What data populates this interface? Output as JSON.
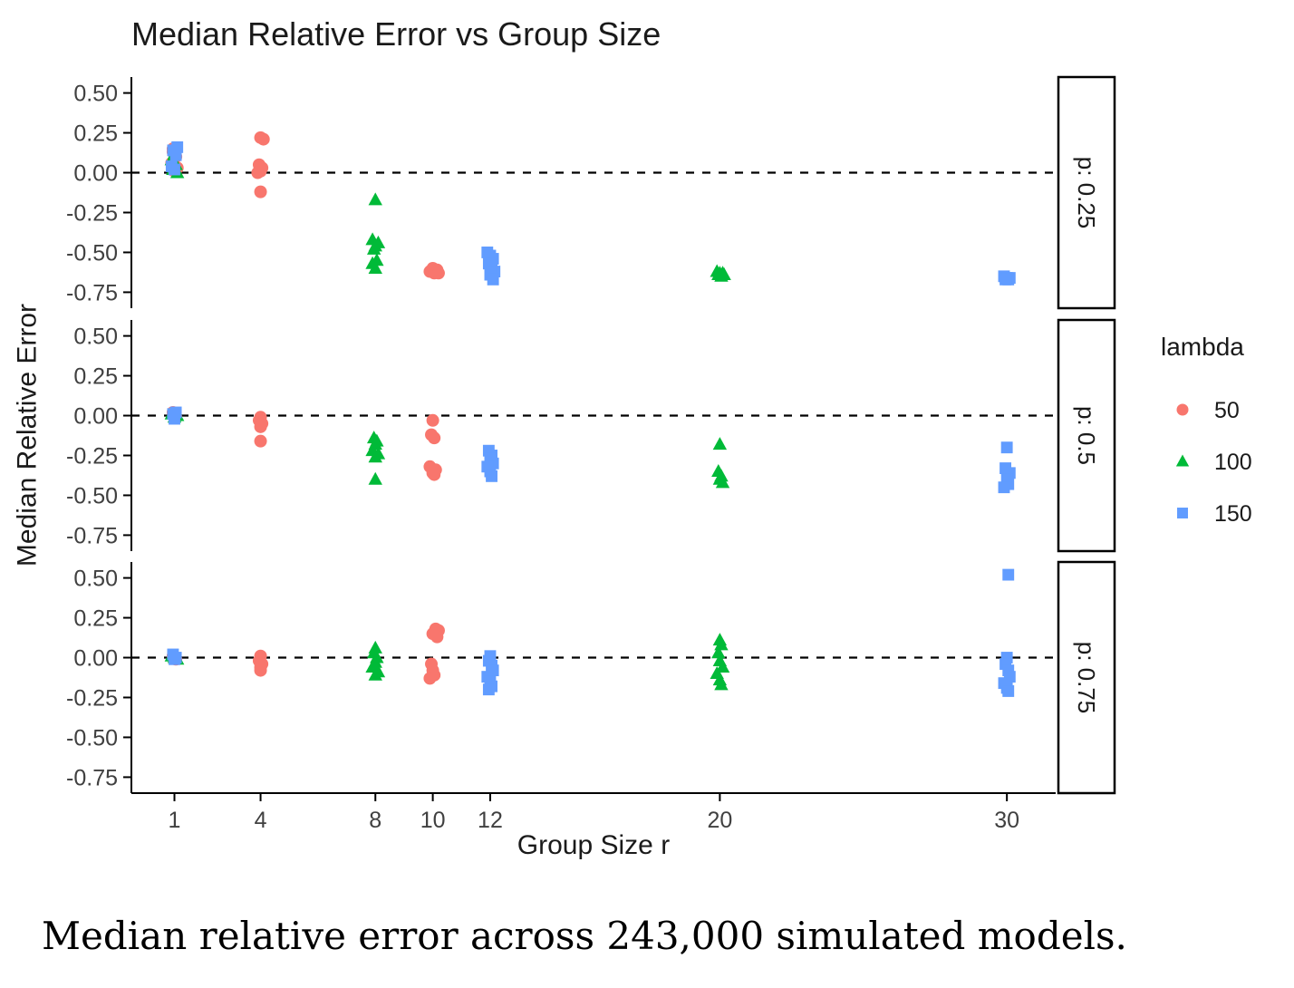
{
  "caption": "Median relative error across 243,000 simulated models.",
  "chart_data": {
    "type": "scatter",
    "title": "Median Relative Error vs Group Size",
    "xlabel": "Group Size r",
    "ylabel": "Median Relative Error",
    "x_ticks": [
      1,
      4,
      8,
      10,
      12,
      20,
      30
    ],
    "y_tick_labels": [
      "0.50",
      "0.25",
      "0.00",
      "-0.25",
      "-0.50",
      "-0.75"
    ],
    "xlim": [
      -0.5,
      31.7
    ],
    "ylim": [
      -0.85,
      0.6
    ],
    "grid": false,
    "reference_line_y": 0,
    "legend": {
      "title": "lambda",
      "position": "right",
      "entries": [
        {
          "label": "50",
          "shape": "circle",
          "color": "#F8766D"
        },
        {
          "label": "100",
          "shape": "triangle",
          "color": "#00BA38"
        },
        {
          "label": "150",
          "shape": "square",
          "color": "#619CFF"
        }
      ]
    },
    "facets": [
      {
        "label": "p: 0.25",
        "series": [
          {
            "name": "50",
            "shape": "circle",
            "color": "#F8766D",
            "points": [
              [
                0.95,
                0.13
              ],
              [
                1.05,
                0.1
              ],
              [
                0.9,
                0.06
              ],
              [
                1.1,
                0.03
              ],
              [
                1.0,
                0.01
              ],
              [
                0.95,
                0.15
              ],
              [
                4.0,
                0.22
              ],
              [
                4.1,
                0.21
              ],
              [
                3.95,
                0.05
              ],
              [
                4.05,
                0.03
              ],
              [
                4.0,
                0.01
              ],
              [
                3.9,
                0.0
              ],
              [
                4.0,
                -0.12
              ],
              [
                10.0,
                -0.6
              ],
              [
                10.15,
                -0.61
              ],
              [
                9.9,
                -0.62
              ],
              [
                10.05,
                -0.63
              ],
              [
                10.2,
                -0.63
              ]
            ]
          },
          {
            "name": "100",
            "shape": "triangle",
            "color": "#00BA38",
            "points": [
              [
                1.0,
                0.12
              ],
              [
                0.9,
                0.08
              ],
              [
                1.05,
                0.05
              ],
              [
                0.95,
                0.02
              ],
              [
                1.1,
                0.0
              ],
              [
                8.0,
                -0.17
              ],
              [
                7.9,
                -0.42
              ],
              [
                8.1,
                -0.44
              ],
              [
                8.0,
                -0.46
              ],
              [
                7.95,
                -0.48
              ],
              [
                8.05,
                -0.55
              ],
              [
                7.9,
                -0.57
              ],
              [
                8.0,
                -0.6
              ],
              [
                19.9,
                -0.62
              ],
              [
                20.0,
                -0.63
              ],
              [
                20.1,
                -0.63
              ],
              [
                19.95,
                -0.64
              ],
              [
                20.05,
                -0.65
              ],
              [
                20.15,
                -0.64
              ]
            ]
          },
          {
            "name": "150",
            "shape": "square",
            "color": "#619CFF",
            "points": [
              [
                1.1,
                0.16
              ],
              [
                0.95,
                0.14
              ],
              [
                1.05,
                0.11
              ],
              [
                0.9,
                0.04
              ],
              [
                1.0,
                0.02
              ],
              [
                11.9,
                -0.5
              ],
              [
                12.0,
                -0.52
              ],
              [
                12.1,
                -0.54
              ],
              [
                11.95,
                -0.57
              ],
              [
                12.05,
                -0.6
              ],
              [
                12.15,
                -0.62
              ],
              [
                12.0,
                -0.64
              ],
              [
                12.1,
                -0.67
              ],
              [
                29.9,
                -0.65
              ],
              [
                30.0,
                -0.66
              ],
              [
                30.1,
                -0.66
              ],
              [
                30.05,
                -0.67
              ],
              [
                29.95,
                -0.67
              ]
            ]
          }
        ]
      },
      {
        "label": "p: 0.5",
        "series": [
          {
            "name": "50",
            "shape": "circle",
            "color": "#F8766D",
            "points": [
              [
                0.95,
                0.02
              ],
              [
                1.0,
                0.0
              ],
              [
                1.05,
                -0.01
              ],
              [
                4.0,
                -0.01
              ],
              [
                3.95,
                -0.03
              ],
              [
                4.05,
                -0.05
              ],
              [
                4.0,
                -0.07
              ],
              [
                4.0,
                -0.16
              ],
              [
                10.0,
                -0.03
              ],
              [
                9.95,
                -0.12
              ],
              [
                10.05,
                -0.14
              ],
              [
                9.9,
                -0.32
              ],
              [
                10.1,
                -0.34
              ],
              [
                10.0,
                -0.36
              ],
              [
                10.05,
                -0.37
              ]
            ]
          },
          {
            "name": "100",
            "shape": "triangle",
            "color": "#00BA38",
            "points": [
              [
                0.9,
                0.01
              ],
              [
                1.0,
                -0.01
              ],
              [
                1.1,
                0.0
              ],
              [
                7.95,
                -0.14
              ],
              [
                8.05,
                -0.16
              ],
              [
                8.0,
                -0.18
              ],
              [
                7.9,
                -0.22
              ],
              [
                8.1,
                -0.24
              ],
              [
                8.0,
                -0.26
              ],
              [
                8.0,
                -0.4
              ],
              [
                20.0,
                -0.18
              ],
              [
                19.95,
                -0.35
              ],
              [
                20.05,
                -0.38
              ],
              [
                20.0,
                -0.4
              ],
              [
                20.1,
                -0.42
              ]
            ]
          },
          {
            "name": "150",
            "shape": "square",
            "color": "#619CFF",
            "points": [
              [
                0.95,
                0.01
              ],
              [
                1.05,
                0.02
              ],
              [
                1.0,
                -0.02
              ],
              [
                11.95,
                -0.22
              ],
              [
                12.05,
                -0.25
              ],
              [
                12.0,
                -0.27
              ],
              [
                12.1,
                -0.3
              ],
              [
                11.9,
                -0.32
              ],
              [
                12.0,
                -0.35
              ],
              [
                12.05,
                -0.38
              ],
              [
                30.0,
                -0.2
              ],
              [
                29.95,
                -0.33
              ],
              [
                30.1,
                -0.36
              ],
              [
                30.0,
                -0.4
              ],
              [
                30.05,
                -0.43
              ],
              [
                29.9,
                -0.45
              ]
            ]
          }
        ]
      },
      {
        "label": "p: 0.75",
        "series": [
          {
            "name": "50",
            "shape": "circle",
            "color": "#F8766D",
            "points": [
              [
                0.95,
                0.01
              ],
              [
                1.0,
                0.0
              ],
              [
                1.05,
                -0.01
              ],
              [
                4.0,
                0.01
              ],
              [
                3.95,
                -0.02
              ],
              [
                4.05,
                -0.04
              ],
              [
                4.0,
                -0.06
              ],
              [
                4.0,
                -0.08
              ],
              [
                10.1,
                0.18
              ],
              [
                10.2,
                0.17
              ],
              [
                10.0,
                0.15
              ],
              [
                10.15,
                0.13
              ],
              [
                9.95,
                -0.04
              ],
              [
                10.0,
                -0.08
              ],
              [
                10.05,
                -0.11
              ],
              [
                9.9,
                -0.13
              ]
            ]
          },
          {
            "name": "100",
            "shape": "triangle",
            "color": "#00BA38",
            "points": [
              [
                0.9,
                0.01
              ],
              [
                1.0,
                0.0
              ],
              [
                1.1,
                -0.01
              ],
              [
                8.0,
                0.06
              ],
              [
                7.95,
                0.03
              ],
              [
                8.05,
                0.0
              ],
              [
                8.0,
                -0.03
              ],
              [
                7.9,
                -0.06
              ],
              [
                8.1,
                -0.09
              ],
              [
                8.0,
                -0.11
              ],
              [
                20.0,
                0.11
              ],
              [
                20.05,
                0.08
              ],
              [
                19.95,
                0.03
              ],
              [
                20.0,
                -0.02
              ],
              [
                20.1,
                -0.06
              ],
              [
                19.9,
                -0.1
              ],
              [
                20.0,
                -0.14
              ],
              [
                20.05,
                -0.17
              ]
            ]
          },
          {
            "name": "150",
            "shape": "square",
            "color": "#619CFF",
            "points": [
              [
                0.95,
                0.02
              ],
              [
                1.0,
                -0.01
              ],
              [
                1.05,
                0.0
              ],
              [
                12.0,
                0.01
              ],
              [
                11.95,
                -0.02
              ],
              [
                12.05,
                -0.05
              ],
              [
                12.1,
                -0.08
              ],
              [
                11.9,
                -0.12
              ],
              [
                12.0,
                -0.15
              ],
              [
                12.05,
                -0.18
              ],
              [
                11.95,
                -0.2
              ],
              [
                30.05,
                0.52
              ],
              [
                30.0,
                0.0
              ],
              [
                29.95,
                -0.04
              ],
              [
                30.05,
                -0.08
              ],
              [
                30.1,
                -0.12
              ],
              [
                29.9,
                -0.16
              ],
              [
                30.0,
                -0.19
              ],
              [
                30.05,
                -0.21
              ]
            ]
          }
        ]
      }
    ]
  }
}
